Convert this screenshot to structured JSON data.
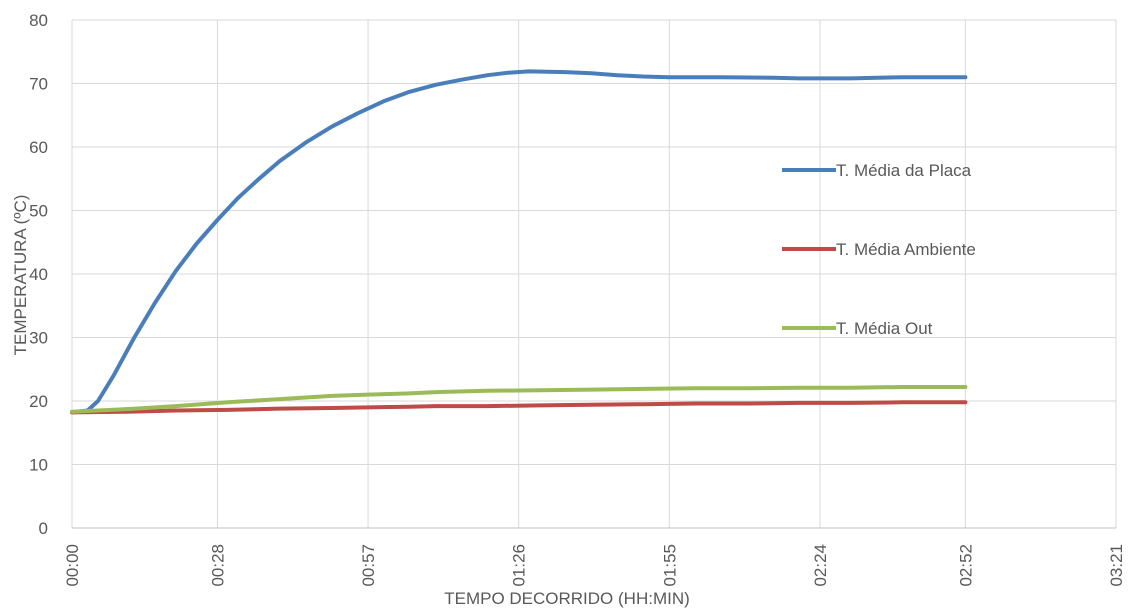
{
  "chart_data": {
    "type": "line",
    "title": "",
    "xlabel": "TEMPO DECORRIDO (HH:MIN)",
    "ylabel": "TEMPERATURA (ºC)",
    "ylim": [
      0,
      80
    ],
    "yticks": [
      0,
      10,
      20,
      30,
      40,
      50,
      60,
      70,
      80
    ],
    "xlim_minutes": [
      0,
      201
    ],
    "xticks": [
      {
        "minutes": 0,
        "label": "00:00"
      },
      {
        "minutes": 28,
        "label": "00:28"
      },
      {
        "minutes": 57,
        "label": "00:57"
      },
      {
        "minutes": 86,
        "label": "01:26"
      },
      {
        "minutes": 115,
        "label": "01:55"
      },
      {
        "minutes": 144,
        "label": "02:24"
      },
      {
        "minutes": 172,
        "label": "02:52"
      },
      {
        "minutes": 201,
        "label": "03:21"
      }
    ],
    "grid": true,
    "legend_position": "right",
    "series": [
      {
        "name": "T. Média da Placa",
        "color": "#4a7ebb",
        "x_minutes": [
          0,
          3,
          5,
          8,
          12,
          16,
          20,
          24,
          28,
          32,
          36,
          40,
          45,
          50,
          55,
          60,
          65,
          70,
          75,
          80,
          84,
          88,
          95,
          100,
          105,
          110,
          115,
          125,
          135,
          140,
          145,
          150,
          155,
          160,
          165,
          172
        ],
        "values": [
          18.2,
          18.5,
          20,
          24,
          30,
          35.5,
          40.5,
          44.8,
          48.5,
          52,
          55,
          57.8,
          60.7,
          63.2,
          65.3,
          67.2,
          68.7,
          69.8,
          70.6,
          71.3,
          71.7,
          71.9,
          71.8,
          71.6,
          71.3,
          71.1,
          71.0,
          71.0,
          70.9,
          70.8,
          70.8,
          70.8,
          70.9,
          71.0,
          71.0,
          71.0
        ]
      },
      {
        "name": "T. Média Ambiente",
        "color": "#be4b48",
        "x_minutes": [
          0,
          10,
          20,
          30,
          40,
          50,
          57,
          65,
          70,
          80,
          90,
          100,
          110,
          120,
          130,
          140,
          150,
          160,
          172
        ],
        "values": [
          18.2,
          18.3,
          18.5,
          18.6,
          18.8,
          18.9,
          19.0,
          19.1,
          19.2,
          19.2,
          19.3,
          19.4,
          19.5,
          19.6,
          19.6,
          19.7,
          19.7,
          19.8,
          19.8
        ]
      },
      {
        "name": "T. Média Out",
        "color": "#9bbb59",
        "x_minutes": [
          0,
          10,
          20,
          30,
          40,
          50,
          57,
          65,
          70,
          80,
          90,
          100,
          110,
          120,
          130,
          140,
          150,
          160,
          172
        ],
        "values": [
          18.3,
          18.7,
          19.2,
          19.8,
          20.3,
          20.8,
          21.0,
          21.2,
          21.4,
          21.6,
          21.7,
          21.8,
          21.9,
          22.0,
          22.0,
          22.1,
          22.1,
          22.2,
          22.2
        ]
      }
    ]
  }
}
